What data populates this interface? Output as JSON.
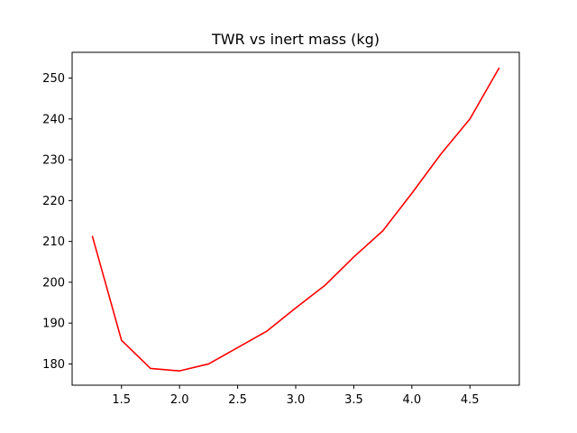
{
  "chart_data": {
    "type": "line",
    "title": "TWR vs inert mass (kg)",
    "xlabel": "",
    "ylabel": "",
    "xlim": [
      1.075,
      4.925
    ],
    "ylim": [
      174.8,
      256.3
    ],
    "x_ticks": [
      1.5,
      2.0,
      2.5,
      3.0,
      3.5,
      4.0,
      4.5
    ],
    "x_tick_labels": [
      "1.5",
      "2.0",
      "2.5",
      "3.0",
      "3.5",
      "4.0",
      "4.5"
    ],
    "y_ticks": [
      180,
      190,
      200,
      210,
      220,
      230,
      240,
      250
    ],
    "y_tick_labels": [
      "180",
      "190",
      "200",
      "210",
      "220",
      "230",
      "240",
      "250"
    ],
    "grid": false,
    "series": [
      {
        "color": "#ff0000",
        "x": [
          1.25,
          1.5,
          1.75,
          2.0,
          2.25,
          2.5,
          2.75,
          3.0,
          3.25,
          3.5,
          3.75,
          4.0,
          4.25,
          4.5,
          4.75
        ],
        "y": [
          211.2,
          185.8,
          178.9,
          178.3,
          180.0,
          184.0,
          188.0,
          193.7,
          199.2,
          206.2,
          212.6,
          221.8,
          231.4,
          240.0,
          252.4
        ]
      }
    ]
  }
}
